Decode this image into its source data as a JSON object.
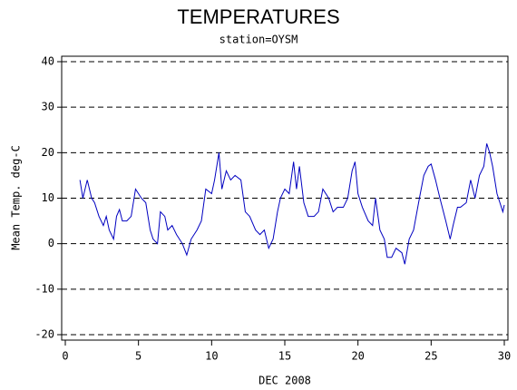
{
  "chart_data": {
    "type": "line",
    "title": "TEMPERATURES",
    "subtitle": "station=OYSM",
    "x_label": "DEC 2008",
    "y_label": "Mean Temp. deg-C",
    "xlim": [
      0,
      30
    ],
    "xticks": [
      0,
      5,
      10,
      15,
      20,
      25,
      30
    ],
    "ylim": [
      -20,
      40
    ],
    "yticks": [
      -20,
      -10,
      0,
      10,
      20,
      30,
      40
    ],
    "grid": true,
    "series": [
      {
        "name": "Mean Temp",
        "color": "#0000c0",
        "x": [
          1,
          1.2,
          1.5,
          1.8,
          2,
          2.3,
          2.6,
          2.8,
          3,
          3.3,
          3.5,
          3.7,
          3.9,
          4.2,
          4.5,
          4.8,
          5,
          5.2,
          5.5,
          5.8,
          6,
          6.3,
          6.5,
          6.8,
          7,
          7.3,
          7.6,
          8,
          8.3,
          8.6,
          9,
          9.3,
          9.6,
          10,
          10.2,
          10.5,
          10.7,
          11,
          11.3,
          11.6,
          12,
          12.3,
          12.6,
          13,
          13.3,
          13.6,
          13.9,
          14.2,
          14.5,
          14.7,
          15,
          15.3,
          15.6,
          15.8,
          16,
          16.3,
          16.6,
          17,
          17.3,
          17.6,
          18,
          18.3,
          18.6,
          19,
          19.3,
          19.6,
          19.8,
          20,
          20.3,
          20.7,
          21,
          21.2,
          21.5,
          21.8,
          22,
          22.3,
          22.6,
          23,
          23.2,
          23.5,
          23.8,
          24.2,
          24.5,
          24.8,
          25,
          25.3,
          25.6,
          26,
          26.3,
          26.5,
          26.8,
          27,
          27.4,
          27.7,
          28,
          28.3,
          28.6,
          28.8,
          29,
          29.2,
          29.5,
          29.7,
          29.9,
          30
        ],
        "values": [
          14,
          10,
          14,
          10,
          9,
          6,
          4,
          6,
          3,
          1,
          6,
          7.5,
          5,
          5,
          6,
          12,
          11,
          10,
          9,
          3,
          1,
          0,
          7,
          6,
          3,
          4,
          2,
          0,
          -2.5,
          1,
          3,
          5,
          12,
          11,
          14,
          20,
          12,
          16,
          14,
          15,
          14,
          7,
          6,
          3,
          2,
          3,
          -1,
          1,
          7,
          10,
          12,
          11,
          18,
          12,
          17,
          9,
          6,
          6,
          7,
          12,
          10,
          7,
          8,
          8,
          10,
          16,
          18,
          11,
          8,
          5,
          4,
          10,
          3,
          1,
          -3,
          -3,
          -1,
          -2,
          -4.5,
          1,
          3,
          10,
          15,
          17,
          17.5,
          14,
          10,
          5,
          1,
          4,
          8,
          8,
          9,
          14,
          10,
          15,
          17,
          22,
          20,
          17,
          11,
          9,
          7,
          8.5
        ]
      }
    ]
  }
}
